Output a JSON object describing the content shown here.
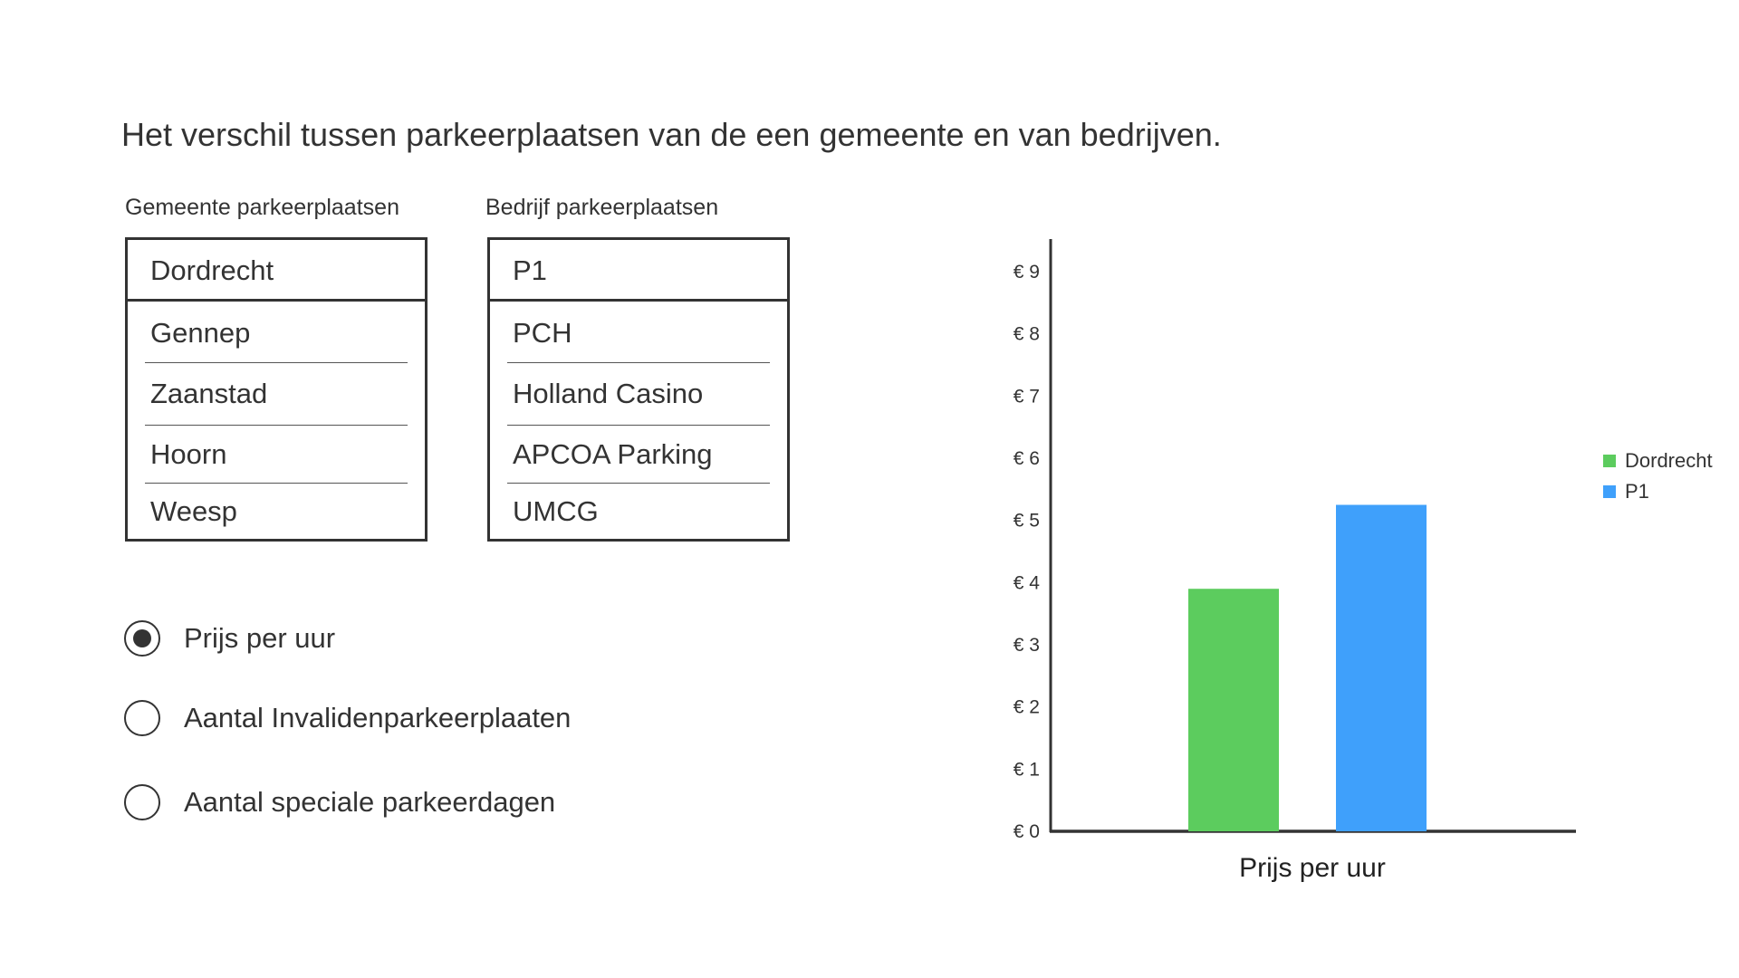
{
  "title": "Het verschil tussen parkeerplaatsen van de een gemeente en van bedrijven.",
  "gemeente": {
    "label": "Gemeente parkeerplaatsen",
    "items": [
      "Dordrecht",
      "Gennep",
      "Zaanstad",
      "Hoorn",
      "Weesp"
    ]
  },
  "bedrijf": {
    "label": "Bedrijf parkeerplaatsen",
    "items": [
      "P1",
      "PCH",
      "Holland Casino",
      "APCOA Parking",
      "UMCG"
    ]
  },
  "options": [
    {
      "label": "Prijs per uur",
      "selected": true
    },
    {
      "label": "Aantal Invalidenparkeerplaaten",
      "selected": false
    },
    {
      "label": "Aantal speciale parkeerdagen",
      "selected": false
    }
  ],
  "colors": {
    "dordrecht": "#5ccc5e",
    "p1": "#3fa0fb",
    "axis": "#333333"
  },
  "chart_data": {
    "type": "bar",
    "categories": [
      "Prijs per uur"
    ],
    "series": [
      {
        "name": "Dordrecht",
        "values": [
          3.9
        ]
      },
      {
        "name": "P1",
        "values": [
          5.25
        ]
      }
    ],
    "title": "",
    "xlabel": "Prijs per uur",
    "ylabel": "",
    "ylim": [
      0,
      9
    ],
    "yticks": [
      0,
      1,
      2,
      3,
      4,
      5,
      6,
      7,
      8,
      9
    ],
    "ytick_prefix": "€ ",
    "grid": false,
    "legend": "right"
  }
}
